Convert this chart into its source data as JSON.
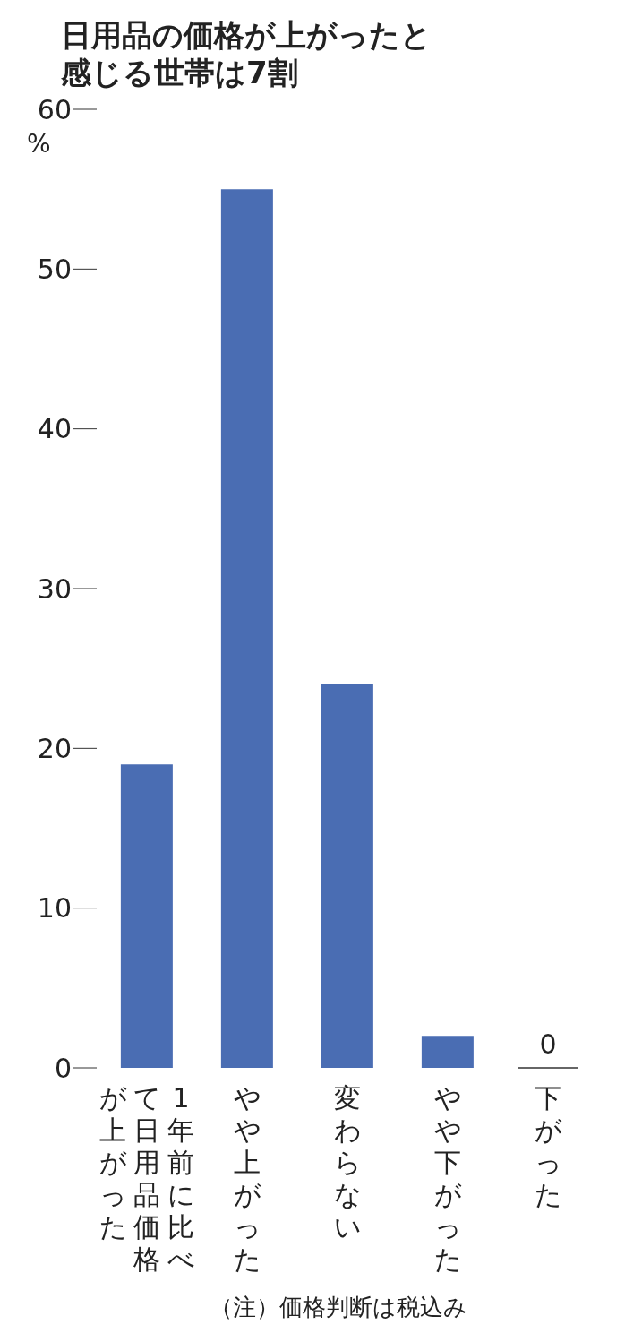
{
  "chart_data": {
    "type": "bar",
    "title": "日用品の価格が上がったと感じる世帯は7割",
    "ylabel": "%",
    "categories": [
      "1年前に比べて日用品価格が上がった",
      "やや上がった",
      "変わらない",
      "やや下がった",
      "下がった"
    ],
    "values": [
      19,
      55,
      24,
      2,
      0
    ],
    "color": "#4a6db3",
    "value_labels": [
      null,
      null,
      null,
      null,
      "0"
    ],
    "ylim": [
      0,
      60
    ],
    "yticks": [
      0,
      10,
      20,
      30,
      40,
      50,
      60
    ],
    "grid": false,
    "legend": false,
    "annotations": [
      "（注）価格判断は税込み"
    ]
  }
}
